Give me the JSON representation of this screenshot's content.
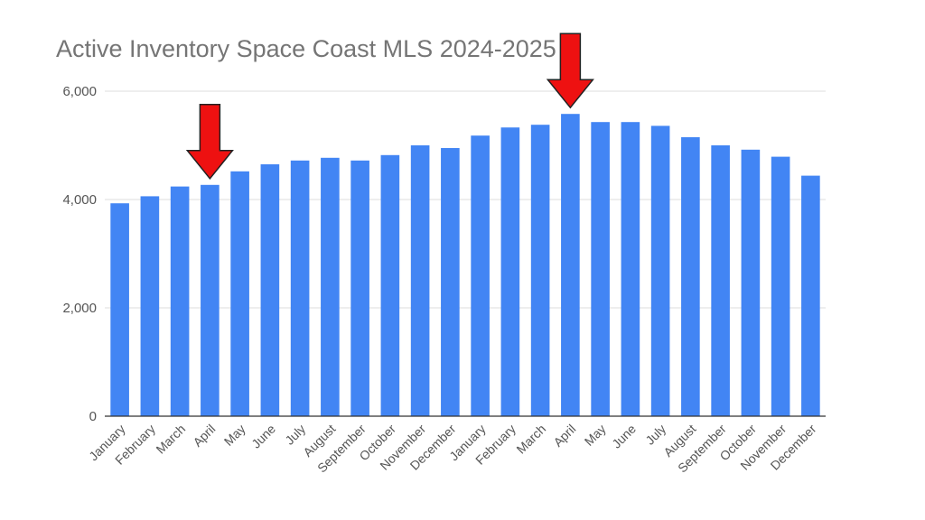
{
  "chart_data": {
    "type": "bar",
    "title": "Active Inventory Space Coast MLS 2024-2025",
    "xlabel": "",
    "ylabel": "",
    "ylim": [
      0,
      6000
    ],
    "yticks": [
      "0",
      "2,000",
      "4,000",
      "6,000"
    ],
    "ytick_values": [
      0,
      2000,
      4000,
      6000
    ],
    "grid": true,
    "legend": "none",
    "bar_color": "#4285f4",
    "categories": [
      "January",
      "February",
      "March",
      "April",
      "May",
      "June",
      "July",
      "August",
      "September",
      "October",
      "November",
      "December",
      "January",
      "February",
      "March",
      "April",
      "May",
      "June",
      "July",
      "August",
      "September",
      "October",
      "November",
      "December"
    ],
    "values": [
      3930,
      4060,
      4240,
      4270,
      4520,
      4650,
      4720,
      4770,
      4720,
      4820,
      5000,
      4950,
      5180,
      5330,
      5380,
      5580,
      5430,
      5430,
      5360,
      5150,
      5000,
      4920,
      4790,
      4440
    ],
    "annotations": [
      {
        "type": "arrow",
        "category_index": 3,
        "color": "#ee1111"
      },
      {
        "type": "arrow",
        "category_index": 15,
        "color": "#ee1111"
      }
    ]
  }
}
